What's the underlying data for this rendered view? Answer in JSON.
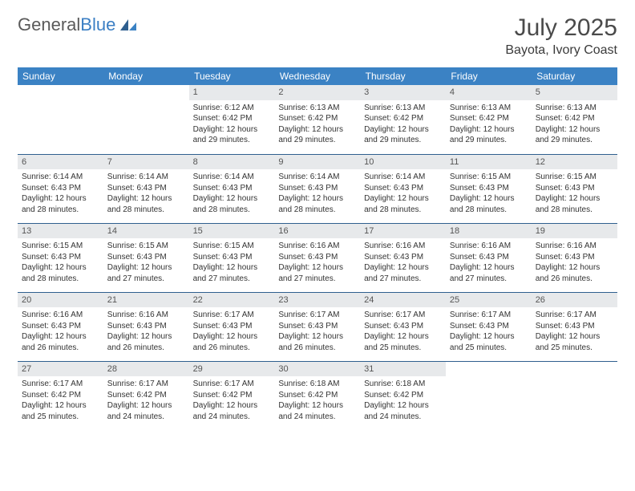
{
  "logo": {
    "word1": "General",
    "word2": "Blue"
  },
  "title": "July 2025",
  "location": "Bayota, Ivory Coast",
  "colors": {
    "header_bg": "#3b82c4",
    "header_text": "#ffffff",
    "daynum_bg": "#e7e9eb",
    "row_border": "#2f5f8f",
    "logo_gray": "#5a5a5a",
    "logo_blue": "#3b7fc4"
  },
  "daysOfWeek": [
    "Sunday",
    "Monday",
    "Tuesday",
    "Wednesday",
    "Thursday",
    "Friday",
    "Saturday"
  ],
  "weeks": [
    [
      null,
      null,
      {
        "n": "1",
        "sr": "6:12 AM",
        "ss": "6:42 PM",
        "dl": "12 hours and 29 minutes."
      },
      {
        "n": "2",
        "sr": "6:13 AM",
        "ss": "6:42 PM",
        "dl": "12 hours and 29 minutes."
      },
      {
        "n": "3",
        "sr": "6:13 AM",
        "ss": "6:42 PM",
        "dl": "12 hours and 29 minutes."
      },
      {
        "n": "4",
        "sr": "6:13 AM",
        "ss": "6:42 PM",
        "dl": "12 hours and 29 minutes."
      },
      {
        "n": "5",
        "sr": "6:13 AM",
        "ss": "6:42 PM",
        "dl": "12 hours and 29 minutes."
      }
    ],
    [
      {
        "n": "6",
        "sr": "6:14 AM",
        "ss": "6:43 PM",
        "dl": "12 hours and 28 minutes."
      },
      {
        "n": "7",
        "sr": "6:14 AM",
        "ss": "6:43 PM",
        "dl": "12 hours and 28 minutes."
      },
      {
        "n": "8",
        "sr": "6:14 AM",
        "ss": "6:43 PM",
        "dl": "12 hours and 28 minutes."
      },
      {
        "n": "9",
        "sr": "6:14 AM",
        "ss": "6:43 PM",
        "dl": "12 hours and 28 minutes."
      },
      {
        "n": "10",
        "sr": "6:14 AM",
        "ss": "6:43 PM",
        "dl": "12 hours and 28 minutes."
      },
      {
        "n": "11",
        "sr": "6:15 AM",
        "ss": "6:43 PM",
        "dl": "12 hours and 28 minutes."
      },
      {
        "n": "12",
        "sr": "6:15 AM",
        "ss": "6:43 PM",
        "dl": "12 hours and 28 minutes."
      }
    ],
    [
      {
        "n": "13",
        "sr": "6:15 AM",
        "ss": "6:43 PM",
        "dl": "12 hours and 28 minutes."
      },
      {
        "n": "14",
        "sr": "6:15 AM",
        "ss": "6:43 PM",
        "dl": "12 hours and 27 minutes."
      },
      {
        "n": "15",
        "sr": "6:15 AM",
        "ss": "6:43 PM",
        "dl": "12 hours and 27 minutes."
      },
      {
        "n": "16",
        "sr": "6:16 AM",
        "ss": "6:43 PM",
        "dl": "12 hours and 27 minutes."
      },
      {
        "n": "17",
        "sr": "6:16 AM",
        "ss": "6:43 PM",
        "dl": "12 hours and 27 minutes."
      },
      {
        "n": "18",
        "sr": "6:16 AM",
        "ss": "6:43 PM",
        "dl": "12 hours and 27 minutes."
      },
      {
        "n": "19",
        "sr": "6:16 AM",
        "ss": "6:43 PM",
        "dl": "12 hours and 26 minutes."
      }
    ],
    [
      {
        "n": "20",
        "sr": "6:16 AM",
        "ss": "6:43 PM",
        "dl": "12 hours and 26 minutes."
      },
      {
        "n": "21",
        "sr": "6:16 AM",
        "ss": "6:43 PM",
        "dl": "12 hours and 26 minutes."
      },
      {
        "n": "22",
        "sr": "6:17 AM",
        "ss": "6:43 PM",
        "dl": "12 hours and 26 minutes."
      },
      {
        "n": "23",
        "sr": "6:17 AM",
        "ss": "6:43 PM",
        "dl": "12 hours and 26 minutes."
      },
      {
        "n": "24",
        "sr": "6:17 AM",
        "ss": "6:43 PM",
        "dl": "12 hours and 25 minutes."
      },
      {
        "n": "25",
        "sr": "6:17 AM",
        "ss": "6:43 PM",
        "dl": "12 hours and 25 minutes."
      },
      {
        "n": "26",
        "sr": "6:17 AM",
        "ss": "6:43 PM",
        "dl": "12 hours and 25 minutes."
      }
    ],
    [
      {
        "n": "27",
        "sr": "6:17 AM",
        "ss": "6:42 PM",
        "dl": "12 hours and 25 minutes."
      },
      {
        "n": "28",
        "sr": "6:17 AM",
        "ss": "6:42 PM",
        "dl": "12 hours and 24 minutes."
      },
      {
        "n": "29",
        "sr": "6:17 AM",
        "ss": "6:42 PM",
        "dl": "12 hours and 24 minutes."
      },
      {
        "n": "30",
        "sr": "6:18 AM",
        "ss": "6:42 PM",
        "dl": "12 hours and 24 minutes."
      },
      {
        "n": "31",
        "sr": "6:18 AM",
        "ss": "6:42 PM",
        "dl": "12 hours and 24 minutes."
      },
      null,
      null
    ]
  ],
  "labels": {
    "sunrise": "Sunrise:",
    "sunset": "Sunset:",
    "daylight": "Daylight:"
  }
}
